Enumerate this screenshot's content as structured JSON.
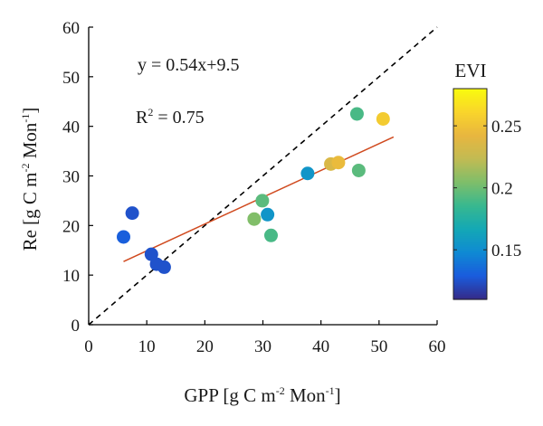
{
  "chart_data": {
    "type": "scatter",
    "title": "",
    "xlabel": {
      "prefix": "GPP [g C m",
      "sup1": "-2",
      "mid": " Mon",
      "sup2": "-1",
      "suffix": "]"
    },
    "ylabel": {
      "prefix": "Re [g C m",
      "sup1": "-2",
      "mid": " Mon",
      "sup2": "-1",
      "suffix": "]"
    },
    "xlim": [
      0,
      60
    ],
    "ylim": [
      0,
      60
    ],
    "xticks": [
      0,
      10,
      20,
      30,
      40,
      50,
      60
    ],
    "yticks": [
      0,
      10,
      20,
      30,
      40,
      50,
      60
    ],
    "grid": false,
    "points": [
      {
        "x": 6.0,
        "y": 17.7,
        "evi": 0.13
      },
      {
        "x": 7.5,
        "y": 22.5,
        "evi": 0.125
      },
      {
        "x": 10.8,
        "y": 14.2,
        "evi": 0.125
      },
      {
        "x": 11.7,
        "y": 12.2,
        "evi": 0.125
      },
      {
        "x": 13.0,
        "y": 11.6,
        "evi": 0.125
      },
      {
        "x": 28.5,
        "y": 21.3,
        "evi": 0.205
      },
      {
        "x": 29.9,
        "y": 25.0,
        "evi": 0.195
      },
      {
        "x": 30.8,
        "y": 22.2,
        "evi": 0.155
      },
      {
        "x": 31.4,
        "y": 18.0,
        "evi": 0.19
      },
      {
        "x": 37.7,
        "y": 30.5,
        "evi": 0.155
      },
      {
        "x": 41.7,
        "y": 32.4,
        "evi": 0.235
      },
      {
        "x": 43.0,
        "y": 32.7,
        "evi": 0.245
      },
      {
        "x": 46.2,
        "y": 42.5,
        "evi": 0.19
      },
      {
        "x": 46.5,
        "y": 31.1,
        "evi": 0.195
      },
      {
        "x": 50.7,
        "y": 41.5,
        "evi": 0.255
      }
    ],
    "regression": {
      "slope": 0.54,
      "intercept": 9.5,
      "x_range": [
        6,
        52.5
      ],
      "color": "#d04a1f"
    },
    "one_to_one_line": {
      "x_range": [
        0,
        60
      ],
      "style": "dashed",
      "color": "#000000"
    },
    "annotations": {
      "equation": "y = 0.54x+9.5",
      "r2_prefix": "R",
      "r2_sup": "2",
      "r2_suffix": " = 0.75"
    },
    "colorbar": {
      "label": "EVI",
      "range": [
        0.11,
        0.28
      ],
      "ticks": [
        0.15,
        0.2,
        0.25
      ],
      "tick_labels": [
        "0.15",
        "0.2",
        "0.25"
      ],
      "colormap": [
        "#352a87",
        "#1a5cdd",
        "#0f8ad3",
        "#14a8b5",
        "#38b88f",
        "#7fbe6a",
        "#c2bb53",
        "#e8b63f",
        "#f9d52b",
        "#f9fb0e"
      ]
    }
  }
}
